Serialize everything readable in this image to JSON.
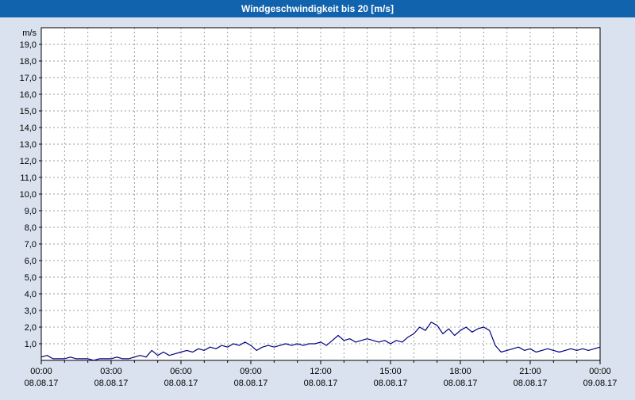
{
  "title_bar": {
    "title": "Windgeschwindigkeit bis 20 [m/s]"
  },
  "colors": {
    "background": "#d9e2ee",
    "title_bar_bg": "#1263ad",
    "title_text": "#ffffff",
    "plot_bg": "#ffffff",
    "grid": "#9c9c9c",
    "axis": "#000000",
    "line": "#000080"
  },
  "chart_data": {
    "type": "line",
    "title": "Windgeschwindigkeit bis 20 [m/s]",
    "xlabel": "",
    "ylabel": "m/s",
    "ylim": [
      0,
      20
    ],
    "y_tick_step": 1,
    "y_tick_format": "comma-decimal",
    "xlim_hours": [
      0,
      24
    ],
    "grid": true,
    "legend": "none",
    "x_ticks": [
      {
        "hour": 0,
        "time": "00:00",
        "date": "08.08.17"
      },
      {
        "hour": 3,
        "time": "03:00",
        "date": "08.08.17"
      },
      {
        "hour": 6,
        "time": "06:00",
        "date": "08.08.17"
      },
      {
        "hour": 9,
        "time": "09:00",
        "date": "08.08.17"
      },
      {
        "hour": 12,
        "time": "12:00",
        "date": "08.08.17"
      },
      {
        "hour": 15,
        "time": "15:00",
        "date": "08.08.17"
      },
      {
        "hour": 18,
        "time": "18:00",
        "date": "08.08.17"
      },
      {
        "hour": 21,
        "time": "21:00",
        "date": "08.08.17"
      },
      {
        "hour": 24,
        "time": "00:00",
        "date": "09.08.17"
      }
    ],
    "x_step_hours": 0.25,
    "series": [
      {
        "name": "Windgeschwindigkeit",
        "unit": "m/s",
        "values": [
          0.2,
          0.3,
          0.1,
          0.1,
          0.1,
          0.2,
          0.1,
          0.1,
          0.1,
          0.0,
          0.1,
          0.1,
          0.1,
          0.2,
          0.1,
          0.1,
          0.2,
          0.3,
          0.2,
          0.6,
          0.3,
          0.5,
          0.3,
          0.4,
          0.5,
          0.6,
          0.5,
          0.7,
          0.6,
          0.8,
          0.7,
          0.9,
          0.8,
          1.0,
          0.9,
          1.1,
          0.9,
          0.6,
          0.8,
          0.9,
          0.8,
          0.9,
          1.0,
          0.9,
          1.0,
          0.9,
          1.0,
          1.0,
          1.1,
          0.9,
          1.2,
          1.5,
          1.2,
          1.3,
          1.1,
          1.2,
          1.3,
          1.2,
          1.1,
          1.2,
          1.0,
          1.2,
          1.1,
          1.4,
          1.6,
          2.0,
          1.8,
          2.3,
          2.1,
          1.6,
          1.9,
          1.5,
          1.8,
          2.0,
          1.7,
          1.9,
          2.0,
          1.8,
          0.9,
          0.5,
          0.6,
          0.7,
          0.8,
          0.6,
          0.7,
          0.5,
          0.6,
          0.7,
          0.6,
          0.5,
          0.6,
          0.7,
          0.6,
          0.7,
          0.6,
          0.7,
          0.8
        ]
      }
    ]
  }
}
